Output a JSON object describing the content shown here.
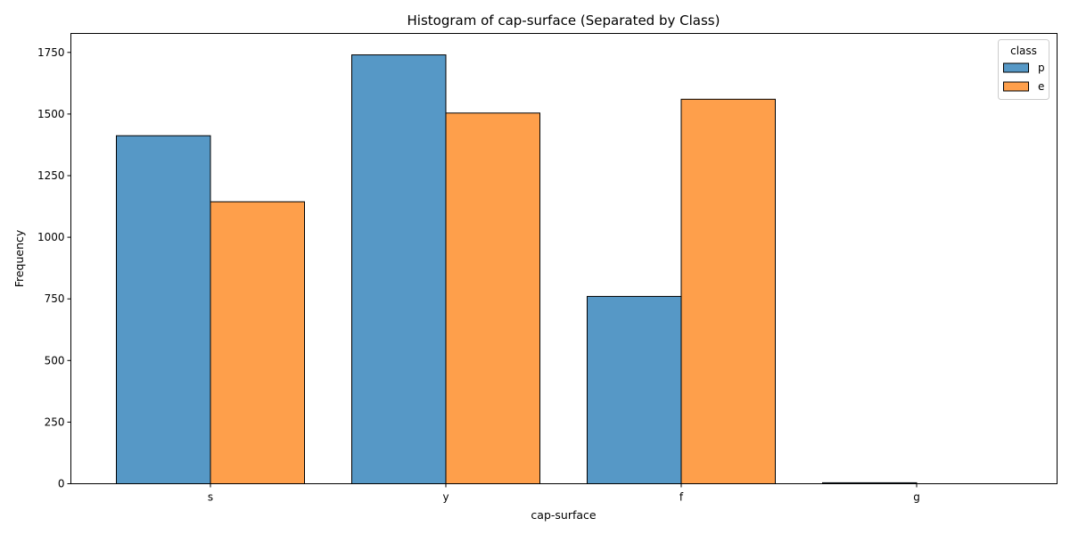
{
  "chart_data": {
    "type": "bar",
    "title": "Histogram of cap-surface (Separated by Class)",
    "xlabel": "cap-surface",
    "ylabel": "Frequency",
    "categories": [
      "s",
      "y",
      "f",
      "g"
    ],
    "series": [
      {
        "name": "p",
        "color": "#5698c6",
        "values": [
          1412,
          1740,
          760,
          4
        ]
      },
      {
        "name": "e",
        "color": "#fe9f4b",
        "values": [
          1144,
          1504,
          1560,
          0
        ]
      }
    ],
    "ylim": [
      0,
      1827
    ],
    "yticks": [
      0,
      250,
      500,
      750,
      1000,
      1250,
      1500,
      1750
    ],
    "legend": {
      "title": "class",
      "placement": "top-right"
    },
    "grid": false
  }
}
